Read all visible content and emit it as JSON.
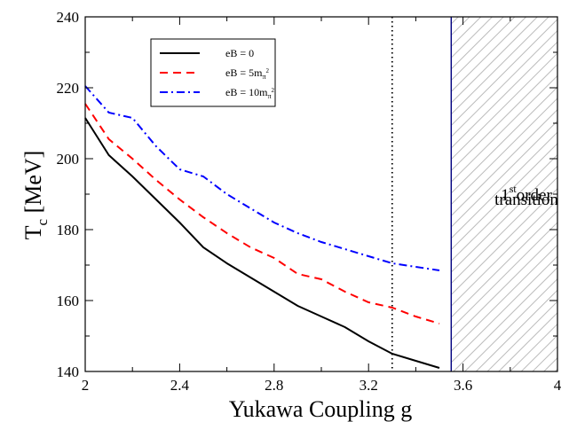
{
  "chart_data": {
    "type": "line",
    "title": "",
    "xlabel": "Yukawa Coupling g",
    "ylabel": "T",
    "ylabel_sub": "c",
    "ylabel_unit": " [MeV]",
    "xlim": [
      2,
      4
    ],
    "ylim": [
      140,
      240
    ],
    "xticks": [
      2,
      2.4,
      2.8,
      3.2,
      3.6,
      4
    ],
    "xtick_labels": [
      "2",
      "2.4",
      "2.8",
      "3.2",
      "3.6",
      "4"
    ],
    "yticks": [
      140,
      160,
      180,
      200,
      220,
      240
    ],
    "ytick_labels": [
      "140",
      "160",
      "180",
      "200",
      "220",
      "240"
    ],
    "grid": false,
    "legend_position": "top-left",
    "series": [
      {
        "name": "eB = 0",
        "name_main": "eB = 0",
        "name_sub": "",
        "name_sup": "",
        "color": "#000000",
        "dash": "solid",
        "x": [
          2.0,
          2.1,
          2.2,
          2.3,
          2.4,
          2.5,
          2.6,
          2.7,
          2.8,
          2.9,
          3.0,
          3.1,
          3.2,
          3.3,
          3.4,
          3.5
        ],
        "y": [
          211.5,
          201,
          195,
          188.5,
          182,
          175,
          170.5,
          166.5,
          162.5,
          158.5,
          155.5,
          152.5,
          148.5,
          145,
          143,
          141
        ]
      },
      {
        "name": "eB = 5mπ²",
        "name_main": "eB = 5m",
        "name_sub": "π",
        "name_sup": "2",
        "color": "#ff0000",
        "dash": "dashed",
        "x": [
          2.0,
          2.1,
          2.2,
          2.3,
          2.4,
          2.5,
          2.6,
          2.7,
          2.8,
          2.9,
          3.0,
          3.1,
          3.2,
          3.3,
          3.4,
          3.5
        ],
        "y": [
          215.5,
          205.5,
          200,
          194,
          188.5,
          183.5,
          179,
          175,
          172,
          167.5,
          166,
          162.5,
          159.5,
          158,
          155.5,
          153.5
        ]
      },
      {
        "name": "eB = 10mπ²",
        "name_main": "eB = 10m",
        "name_sub": "π",
        "name_sup": "2",
        "color": "#0000ff",
        "dash": "dashdot",
        "x": [
          2.0,
          2.1,
          2.2,
          2.3,
          2.4,
          2.5,
          2.6,
          2.7,
          2.8,
          2.9,
          3.0,
          3.1,
          3.2,
          3.3,
          3.4,
          3.5
        ],
        "y": [
          220.5,
          213,
          211.5,
          203.5,
          197,
          195,
          190,
          186,
          182,
          179,
          176.5,
          174.5,
          172.5,
          170.5,
          169.5,
          168.5
        ]
      }
    ],
    "reference_lines": [
      {
        "orientation": "vertical",
        "x": 3.3,
        "style": "dotted",
        "color": "#000000"
      },
      {
        "orientation": "vertical",
        "x": 3.55,
        "style": "solid",
        "color": "#00007f"
      }
    ],
    "shaded_region": {
      "x_from": 3.55,
      "x_to": 4,
      "pattern": "diagonal-hatch",
      "color": "#bbbbbb"
    },
    "annotation": {
      "line1_main": "1",
      "line1_sup": "st",
      "line1_rest": "order",
      "line2": "transition"
    }
  }
}
